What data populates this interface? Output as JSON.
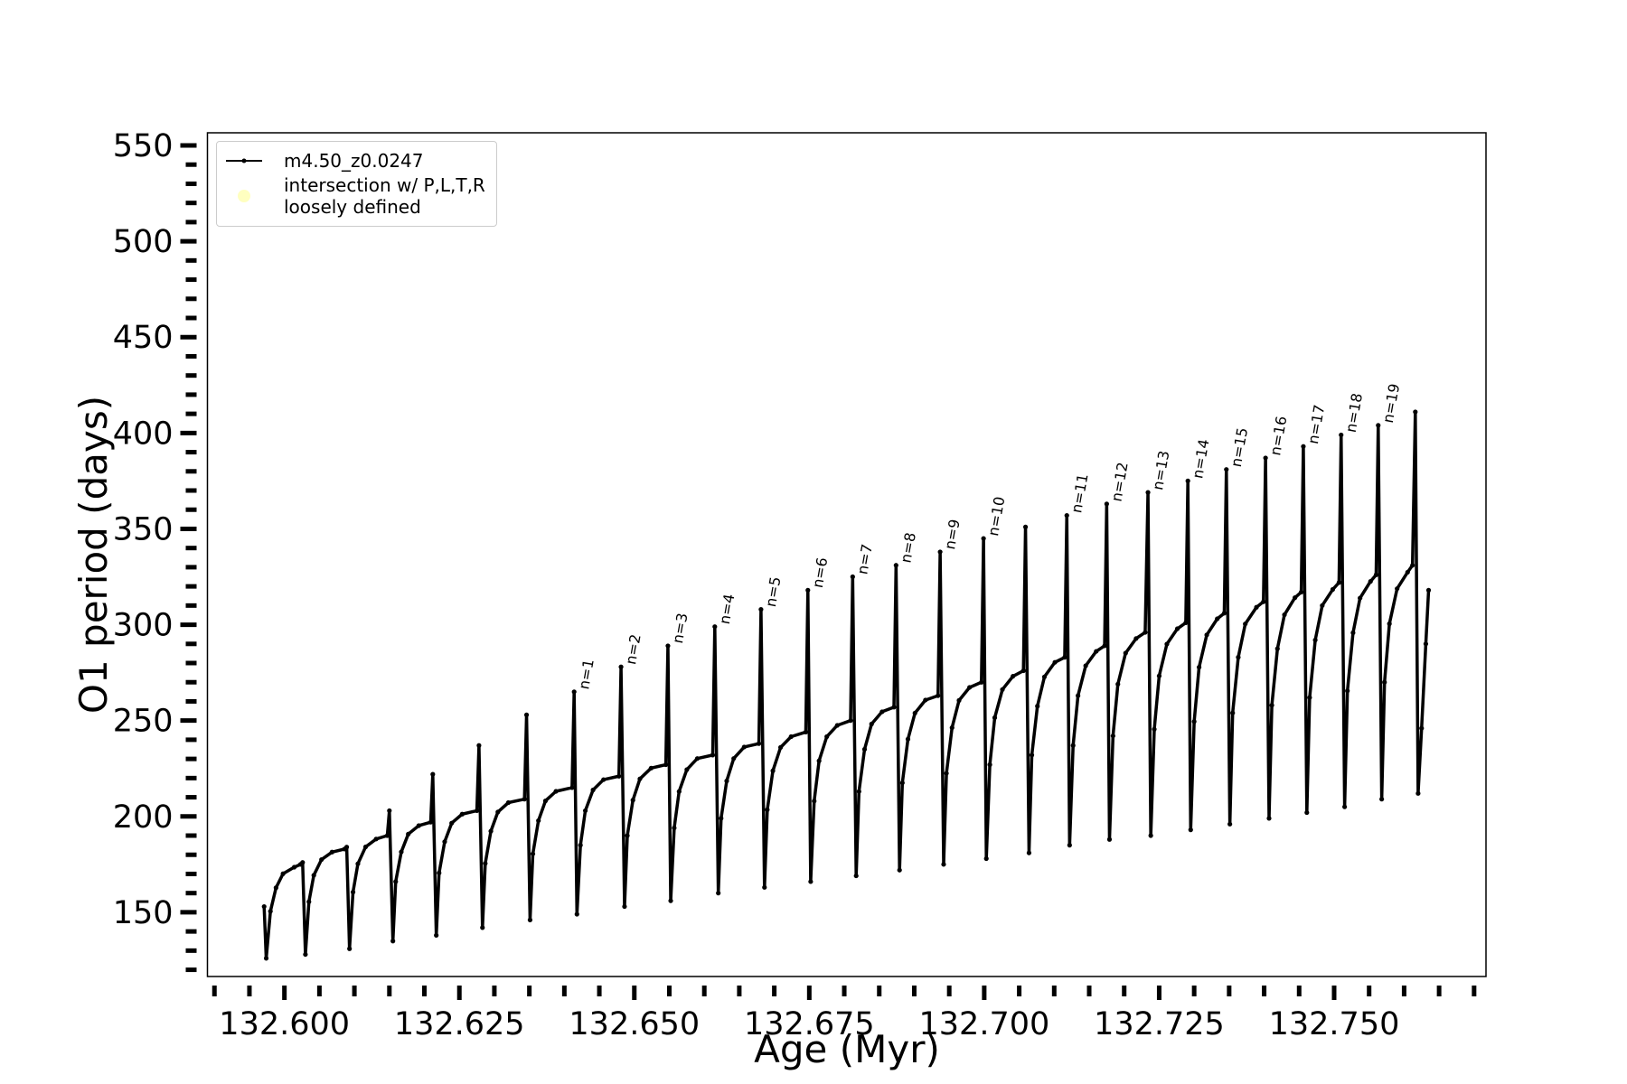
{
  "chart_data": {
    "type": "line",
    "xlabel": "Age (Myr)",
    "ylabel": "O1 period (days)",
    "xlim": [
      132.589,
      132.7717
    ],
    "ylim": [
      116.5,
      556.6
    ],
    "xticks": [
      {
        "value": 132.6,
        "label": "132.600"
      },
      {
        "value": 132.625,
        "label": "132.625"
      },
      {
        "value": 132.65,
        "label": "132.650"
      },
      {
        "value": 132.675,
        "label": "132.675"
      },
      {
        "value": 132.7,
        "label": "132.700"
      },
      {
        "value": 132.725,
        "label": "132.725"
      },
      {
        "value": 132.75,
        "label": "132.750"
      }
    ],
    "xticks_minor": [
      132.59,
      132.595,
      132.605,
      132.61,
      132.615,
      132.62,
      132.63,
      132.635,
      132.64,
      132.645,
      132.655,
      132.66,
      132.665,
      132.67,
      132.68,
      132.685,
      132.69,
      132.695,
      132.705,
      132.71,
      132.715,
      132.72,
      132.73,
      132.735,
      132.74,
      132.745,
      132.755,
      132.76,
      132.765,
      132.77
    ],
    "yticks": [
      150,
      200,
      250,
      300,
      350,
      400,
      450,
      500,
      550
    ],
    "yticks_minor": [
      120,
      130,
      140,
      160,
      170,
      180,
      190,
      210,
      220,
      230,
      240,
      260,
      270,
      280,
      290,
      310,
      320,
      330,
      340,
      360,
      370,
      380,
      390,
      410,
      420,
      430,
      440,
      460,
      470,
      480,
      490,
      510,
      520,
      530,
      540
    ],
    "grid": false,
    "x": [
      132.5971,
      132.5974,
      132.598,
      132.5988,
      132.5998,
      132.6014,
      132.6023,
      132.6026,
      132.603,
      132.6035,
      132.6042,
      132.6053,
      132.6068,
      132.6086,
      132.6089,
      132.6093,
      132.6098,
      132.6105,
      132.6116,
      132.6131,
      132.6147,
      132.615,
      132.6155,
      132.6159,
      132.6167,
      132.6177,
      132.6192,
      132.6209,
      132.6212,
      132.6217,
      132.6221,
      132.6229,
      132.6239,
      132.6254,
      132.6275,
      132.6278,
      132.6283,
      132.6287,
      132.6295,
      132.6305,
      132.632,
      132.6343,
      132.6346,
      132.6351,
      132.6355,
      132.6363,
      132.6373,
      132.6388,
      132.6411,
      132.6414,
      132.6418,
      132.6423,
      132.643,
      132.6441,
      132.6456,
      132.6478,
      132.6481,
      132.6486,
      132.649,
      132.6498,
      132.6508,
      132.6524,
      132.6545,
      132.6548,
      132.6552,
      132.6557,
      132.6564,
      132.6575,
      132.659,
      132.6612,
      132.6615,
      132.662,
      132.6624,
      132.6632,
      132.6642,
      132.6657,
      132.6678,
      132.6681,
      132.6686,
      132.669,
      132.6698,
      132.6709,
      132.6724,
      132.6745,
      132.6748,
      132.6752,
      132.6757,
      132.6764,
      132.6775,
      132.679,
      132.6809,
      132.6812,
      132.6817,
      132.6821,
      132.6829,
      132.6839,
      132.6854,
      132.6871,
      132.6874,
      132.6879,
      132.6883,
      132.6891,
      132.6901,
      132.6916,
      132.6934,
      132.6937,
      132.6942,
      132.6946,
      132.6954,
      132.6964,
      132.6979,
      132.6996,
      132.6999,
      132.7003,
      132.7008,
      132.7015,
      132.7026,
      132.7041,
      132.7056,
      132.7059,
      132.7064,
      132.7068,
      132.7076,
      132.7086,
      132.7101,
      132.7115,
      132.7118,
      132.7122,
      132.7127,
      132.7134,
      132.7145,
      132.716,
      132.7172,
      132.7175,
      132.7179,
      132.7184,
      132.7191,
      132.7202,
      132.7217,
      132.723,
      132.7234,
      132.7238,
      132.7243,
      132.725,
      132.7261,
      132.7276,
      132.7288,
      132.7291,
      132.7295,
      132.73,
      132.7307,
      132.7318,
      132.7333,
      132.7343,
      132.7346,
      132.7351,
      132.7355,
      132.7363,
      132.7373,
      132.7389,
      132.7399,
      132.7402,
      132.7407,
      132.7411,
      132.7419,
      132.7429,
      132.7444,
      132.7453,
      132.7456,
      132.7461,
      132.7465,
      132.7473,
      132.7483,
      132.7498,
      132.7507,
      132.751,
      132.7515,
      132.7519,
      132.7527,
      132.7537,
      132.7552,
      132.756,
      132.7563,
      132.7568,
      132.7572,
      132.7579,
      132.759,
      132.7605,
      132.7612,
      132.7616,
      132.762,
      132.7625,
      132.7631,
      132.7635
    ],
    "series": [
      {
        "name": "m4.50_z0.0247",
        "color": "#000000",
        "values": [
          153,
          126,
          150.5,
          162.8,
          170.1,
          173.5,
          175,
          176,
          128,
          155.5,
          169.3,
          177.5,
          181.4,
          183,
          184,
          131,
          160.5,
          175.3,
          184.1,
          188.2,
          190,
          203,
          135,
          166,
          181.5,
          190.8,
          195.2,
          197,
          222,
          138,
          170.5,
          186.8,
          196.5,
          201.2,
          203,
          237,
          142,
          175.5,
          192.3,
          202.3,
          207.2,
          209,
          253,
          146,
          180.5,
          197.8,
          208.1,
          213.1,
          215,
          265,
          149,
          185,
          203,
          213.8,
          219.2,
          221,
          278,
          153,
          190,
          208.5,
          219.6,
          225.2,
          227,
          289,
          156,
          194,
          213,
          224.4,
          230.2,
          232,
          299,
          160,
          199,
          218.5,
          230.2,
          236.2,
          238,
          308,
          163,
          203.5,
          223.8,
          236,
          241.6,
          244,
          318,
          166,
          208,
          229,
          241.6,
          247.5,
          250,
          325,
          169,
          213,
          235,
          248.2,
          254.6,
          257,
          331,
          172,
          217.5,
          240.3,
          253.9,
          260.7,
          263,
          338,
          175,
          222.5,
          246.3,
          260.5,
          267.3,
          270,
          345,
          178,
          227,
          251.5,
          266.2,
          273.1,
          276,
          351,
          181,
          232,
          257.5,
          272.8,
          280.4,
          283,
          357,
          185,
          237,
          263,
          278.6,
          286.1,
          289,
          363,
          188,
          242,
          269,
          285.2,
          292.8,
          296,
          369,
          190,
          245.5,
          273.3,
          289.9,
          297.9,
          301,
          375,
          193,
          249.5,
          277.8,
          294.7,
          303.1,
          306,
          381,
          196,
          254,
          283,
          300.4,
          309.1,
          312,
          387,
          199,
          258,
          287.5,
          305.2,
          314.1,
          317,
          393,
          202,
          262,
          292,
          310,
          318.4,
          322,
          399,
          205,
          265.5,
          295.8,
          313.9,
          322.6,
          326,
          404,
          209,
          270,
          300.5,
          318.8,
          327.4,
          331,
          411,
          212,
          246,
          290,
          318
        ]
      }
    ],
    "legend": {
      "location": "upper left",
      "entries": [
        {
          "name": "m4.50_z0.0247",
          "color": "#000000",
          "marker": "line"
        },
        {
          "name": "intersection w/ P,L,T,R\nloosely defined",
          "color": "#ffffb0",
          "marker": "circle"
        }
      ]
    },
    "annotations": [
      {
        "text": "n=1",
        "x": 132.6414,
        "y": 265
      },
      {
        "text": "n=2",
        "x": 132.6481,
        "y": 278
      },
      {
        "text": "n=3",
        "x": 132.6548,
        "y": 289
      },
      {
        "text": "n=4",
        "x": 132.6615,
        "y": 299
      },
      {
        "text": "n=5",
        "x": 132.6681,
        "y": 308
      },
      {
        "text": "n=6",
        "x": 132.6748,
        "y": 318
      },
      {
        "text": "n=7",
        "x": 132.6812,
        "y": 325
      },
      {
        "text": "n=8",
        "x": 132.6874,
        "y": 331
      },
      {
        "text": "n=9",
        "x": 132.6937,
        "y": 338
      },
      {
        "text": "n=10",
        "x": 132.6999,
        "y": 345
      },
      {
        "text": "n=11",
        "x": 132.7118,
        "y": 357
      },
      {
        "text": "n=12",
        "x": 132.7175,
        "y": 363
      },
      {
        "text": "n=13",
        "x": 132.7234,
        "y": 369
      },
      {
        "text": "n=14",
        "x": 132.7291,
        "y": 375
      },
      {
        "text": "n=15",
        "x": 132.7346,
        "y": 381
      },
      {
        "text": "n=16",
        "x": 132.7402,
        "y": 387
      },
      {
        "text": "n=17",
        "x": 132.7456,
        "y": 393
      },
      {
        "text": "n=18",
        "x": 132.751,
        "y": 399
      },
      {
        "text": "n=19",
        "x": 132.7563,
        "y": 404
      }
    ]
  }
}
